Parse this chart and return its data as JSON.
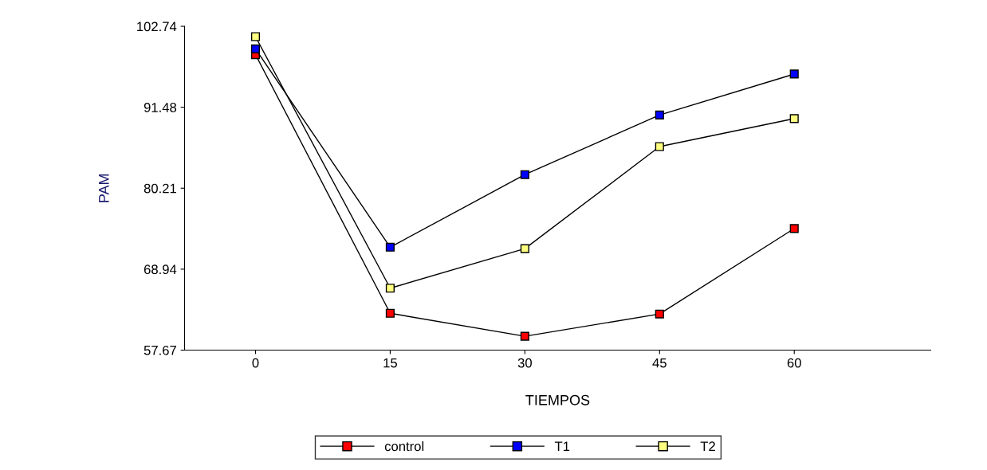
{
  "chart_data": {
    "type": "line",
    "xlabel": "TIEMPOS",
    "ylabel": "PAM",
    "x": [
      0,
      15,
      30,
      45,
      60
    ],
    "series": [
      {
        "name": "control",
        "color": "#ff0000",
        "values": [
          98.8,
          62.8,
          59.6,
          62.7,
          74.6
        ]
      },
      {
        "name": "T1",
        "color": "#0000ff",
        "values": [
          99.6,
          72.0,
          82.1,
          90.4,
          96.1
        ]
      },
      {
        "name": "T2",
        "color": "#ffff80",
        "values": [
          101.3,
          66.3,
          71.8,
          86.0,
          89.9
        ]
      }
    ],
    "xlim": [
      -7.9,
      75.2
    ],
    "xticks": [
      0,
      15,
      30,
      45,
      60
    ],
    "ylim": [
      57.67,
      102.74
    ],
    "yticks": [
      57.67,
      68.94,
      80.21,
      91.48,
      102.74
    ],
    "marker": "square",
    "line_style": "solid",
    "grid": false,
    "legend": "bottom"
  }
}
